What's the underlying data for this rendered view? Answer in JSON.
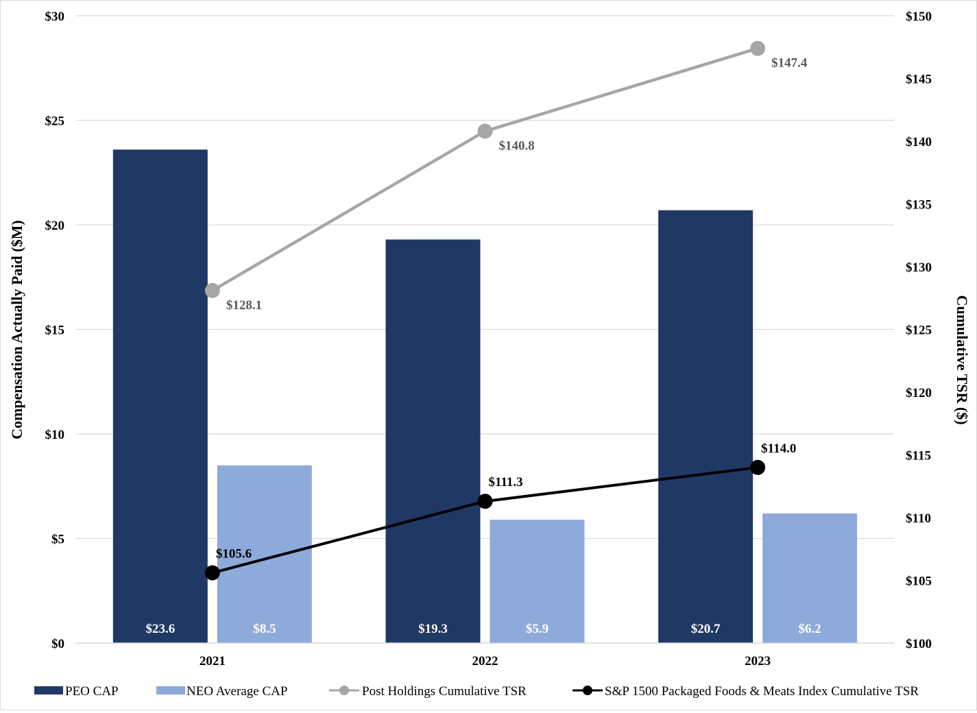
{
  "chart_data": {
    "type": "bar",
    "categories": [
      "2021",
      "2022",
      "2023"
    ],
    "left_axis": {
      "title": "Compensation Actually Paid ($M)",
      "ylim": [
        0,
        30
      ],
      "ticks": [
        0,
        5,
        10,
        15,
        20,
        25,
        30
      ],
      "tick_labels": [
        "$0",
        "$5",
        "$10",
        "$15",
        "$20",
        "$25",
        "$30"
      ]
    },
    "right_axis": {
      "title": "Cumulative TSR ($)",
      "ylim": [
        100,
        150
      ],
      "ticks": [
        100,
        105,
        110,
        115,
        120,
        125,
        130,
        135,
        140,
        145,
        150
      ],
      "tick_labels": [
        "$100",
        "$105",
        "$110",
        "$115",
        "$120",
        "$125",
        "$130",
        "$135",
        "$140",
        "$145",
        "$150"
      ]
    },
    "bar_series": [
      {
        "name": "PEO CAP",
        "values": [
          23.6,
          19.3,
          20.7
        ],
        "labels": [
          "$23.6",
          "$19.3",
          "$20.7"
        ],
        "color": "#203864",
        "axis": "left"
      },
      {
        "name": "NEO Average CAP",
        "values": [
          8.5,
          5.9,
          6.2
        ],
        "labels": [
          "$8.5",
          "$5.9",
          "$6.2"
        ],
        "color": "#8eaadb",
        "axis": "left"
      }
    ],
    "line_series": [
      {
        "name": "Post Holdings Cumulative TSR",
        "values": [
          128.1,
          140.8,
          147.4
        ],
        "labels": [
          "$128.1",
          "$140.8",
          "$147.4"
        ],
        "color": "#a6a6a6",
        "label_color": "#595959",
        "axis": "right"
      },
      {
        "name": "S&P 1500 Packaged Foods & Meats Index Cumulative TSR",
        "values": [
          105.6,
          111.3,
          114.0
        ],
        "labels": [
          "$105.6",
          "$111.3",
          "$114.0"
        ],
        "color": "#000000",
        "label_color": "#000000",
        "axis": "right"
      }
    ],
    "legend_position": "bottom",
    "grid": true
  }
}
